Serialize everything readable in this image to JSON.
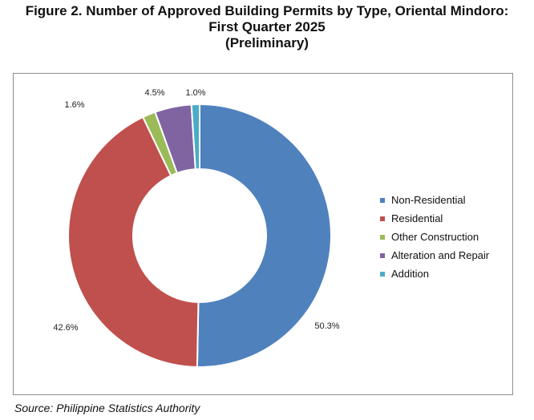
{
  "title": {
    "line1": "Figure 2. Number of Approved Building Permits by Type, Oriental Mindoro:",
    "line2": "First Quarter 2025",
    "line3": "(Preliminary)"
  },
  "source": "Source: Philippine Statistics Authority",
  "chart_data": {
    "type": "pie",
    "variant": "doughnut",
    "legend_position": "right",
    "slices": [
      {
        "name": "Non-Residential",
        "value": 50.3,
        "label": "50.3%",
        "color": "#4f81bd"
      },
      {
        "name": "Residential",
        "value": 42.6,
        "label": "42.6%",
        "color": "#c0504d"
      },
      {
        "name": "Other Construction",
        "value": 1.6,
        "label": "1.6%",
        "color": "#9bbb59"
      },
      {
        "name": "Alteration and Repair",
        "value": 4.5,
        "label": "4.5%",
        "color": "#8064a2"
      },
      {
        "name": "Addition",
        "value": 1.0,
        "label": "1.0%",
        "color": "#4bacc6"
      }
    ]
  }
}
